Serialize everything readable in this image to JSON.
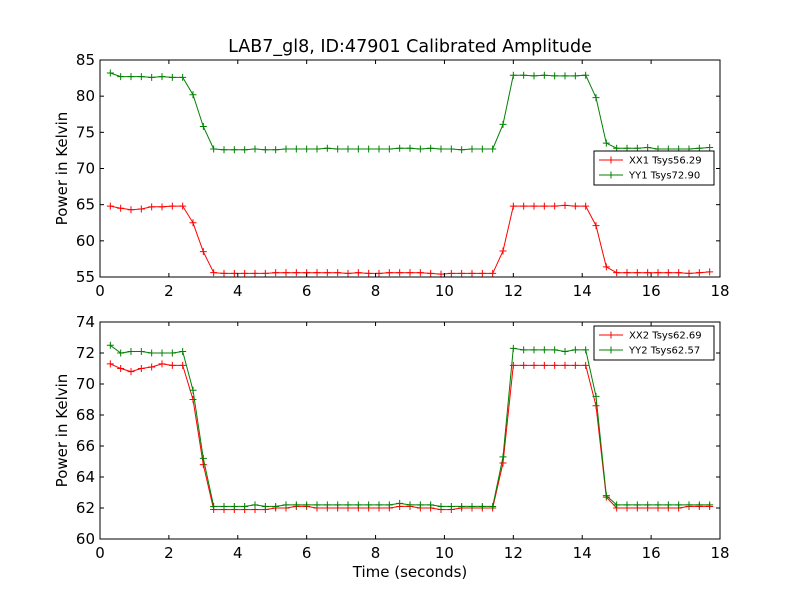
{
  "figure": {
    "title": "LAB7_gl8, ID:47901 Calibrated Amplitude",
    "xlabel": "Time (seconds)"
  },
  "chart_data": [
    {
      "type": "line",
      "title": "LAB7_gl8, ID:47901 Calibrated Amplitude",
      "xlabel": "",
      "ylabel": "Power in Kelvin",
      "xlim": [
        0,
        18
      ],
      "ylim": [
        55,
        85
      ],
      "xticks": [
        0,
        2,
        4,
        6,
        8,
        10,
        12,
        14,
        16,
        18
      ],
      "yticks": [
        55,
        60,
        65,
        70,
        75,
        80,
        85
      ],
      "grid": false,
      "legend_position": "center-right",
      "x": [
        0.3,
        0.6,
        0.9,
        1.2,
        1.5,
        1.8,
        2.1,
        2.4,
        2.7,
        3.0,
        3.3,
        3.6,
        3.9,
        4.2,
        4.5,
        4.8,
        5.1,
        5.4,
        5.7,
        6.0,
        6.3,
        6.6,
        6.9,
        7.2,
        7.5,
        7.8,
        8.1,
        8.4,
        8.7,
        9.0,
        9.3,
        9.6,
        9.9,
        10.2,
        10.5,
        10.8,
        11.1,
        11.4,
        11.7,
        12.0,
        12.3,
        12.6,
        12.9,
        13.2,
        13.5,
        13.8,
        14.1,
        14.4,
        14.7,
        15.0,
        15.3,
        15.6,
        15.9,
        16.2,
        16.5,
        16.8,
        17.1,
        17.4,
        17.7
      ],
      "series": [
        {
          "name": "XX1 Tsys56.29",
          "color": "#ff0000",
          "marker": "+",
          "values": [
            64.8,
            64.5,
            64.3,
            64.4,
            64.7,
            64.7,
            64.8,
            64.8,
            62.5,
            58.5,
            55.6,
            55.5,
            55.5,
            55.5,
            55.5,
            55.5,
            55.6,
            55.6,
            55.6,
            55.6,
            55.6,
            55.6,
            55.6,
            55.5,
            55.6,
            55.5,
            55.5,
            55.6,
            55.6,
            55.6,
            55.6,
            55.5,
            55.4,
            55.5,
            55.5,
            55.5,
            55.5,
            55.5,
            58.6,
            64.8,
            64.8,
            64.8,
            64.8,
            64.8,
            64.9,
            64.8,
            64.8,
            62.1,
            56.4,
            55.6,
            55.6,
            55.6,
            55.6,
            55.6,
            55.6,
            55.6,
            55.5,
            55.6,
            55.7
          ]
        },
        {
          "name": "YY1 Tsys72.90",
          "color": "#008000",
          "marker": "+",
          "values": [
            83.2,
            82.7,
            82.7,
            82.7,
            82.6,
            82.7,
            82.6,
            82.6,
            80.2,
            75.8,
            72.7,
            72.6,
            72.6,
            72.6,
            72.7,
            72.6,
            72.6,
            72.7,
            72.7,
            72.7,
            72.7,
            72.8,
            72.7,
            72.7,
            72.7,
            72.7,
            72.7,
            72.7,
            72.8,
            72.8,
            72.7,
            72.8,
            72.7,
            72.7,
            72.6,
            72.7,
            72.7,
            72.7,
            76.1,
            82.9,
            82.9,
            82.8,
            82.9,
            82.8,
            82.8,
            82.8,
            82.9,
            79.8,
            73.5,
            72.8,
            72.8,
            72.8,
            72.9,
            72.7,
            72.7,
            72.7,
            72.7,
            72.8,
            72.9
          ]
        }
      ]
    },
    {
      "type": "line",
      "title": "",
      "xlabel": "Time (seconds)",
      "ylabel": "Power in Kelvin",
      "xlim": [
        0,
        18
      ],
      "ylim": [
        60,
        74
      ],
      "xticks": [
        0,
        2,
        4,
        6,
        8,
        10,
        12,
        14,
        16,
        18
      ],
      "yticks": [
        60,
        62,
        64,
        66,
        68,
        70,
        72,
        74
      ],
      "grid": false,
      "legend_position": "top-right",
      "x": [
        0.3,
        0.6,
        0.9,
        1.2,
        1.5,
        1.8,
        2.1,
        2.4,
        2.7,
        3.0,
        3.3,
        3.6,
        3.9,
        4.2,
        4.5,
        4.8,
        5.1,
        5.4,
        5.7,
        6.0,
        6.3,
        6.6,
        6.9,
        7.2,
        7.5,
        7.8,
        8.1,
        8.4,
        8.7,
        9.0,
        9.3,
        9.6,
        9.9,
        10.2,
        10.5,
        10.8,
        11.1,
        11.4,
        11.7,
        12.0,
        12.3,
        12.6,
        12.9,
        13.2,
        13.5,
        13.8,
        14.1,
        14.4,
        14.7,
        15.0,
        15.3,
        15.6,
        15.9,
        16.2,
        16.5,
        16.8,
        17.1,
        17.4,
        17.7
      ],
      "series": [
        {
          "name": "XX2 Tsys62.69",
          "color": "#ff0000",
          "marker": "+",
          "values": [
            71.3,
            71.0,
            70.8,
            71.0,
            71.1,
            71.3,
            71.2,
            71.2,
            69.0,
            64.8,
            61.9,
            61.9,
            61.9,
            61.9,
            61.9,
            61.9,
            62.0,
            62.0,
            62.1,
            62.1,
            62.0,
            62.0,
            62.0,
            62.0,
            62.0,
            62.0,
            62.0,
            62.0,
            62.1,
            62.1,
            62.0,
            62.0,
            61.9,
            61.9,
            62.0,
            62.0,
            62.0,
            62.0,
            64.9,
            71.2,
            71.2,
            71.2,
            71.2,
            71.2,
            71.2,
            71.2,
            71.2,
            68.6,
            62.7,
            62.0,
            62.0,
            62.0,
            62.0,
            62.0,
            62.0,
            62.0,
            62.1,
            62.1,
            62.1
          ]
        },
        {
          "name": "YY2 Tsys62.57",
          "color": "#008000",
          "marker": "+",
          "values": [
            72.5,
            72.0,
            72.1,
            72.1,
            72.0,
            72.0,
            72.0,
            72.1,
            69.6,
            65.2,
            62.1,
            62.1,
            62.1,
            62.1,
            62.2,
            62.1,
            62.1,
            62.2,
            62.2,
            62.2,
            62.2,
            62.2,
            62.2,
            62.2,
            62.2,
            62.2,
            62.2,
            62.2,
            62.3,
            62.2,
            62.2,
            62.2,
            62.1,
            62.1,
            62.1,
            62.1,
            62.1,
            62.1,
            65.3,
            72.3,
            72.2,
            72.2,
            72.2,
            72.2,
            72.1,
            72.2,
            72.2,
            69.2,
            62.8,
            62.2,
            62.2,
            62.2,
            62.2,
            62.2,
            62.2,
            62.2,
            62.2,
            62.2,
            62.2
          ]
        }
      ]
    }
  ]
}
